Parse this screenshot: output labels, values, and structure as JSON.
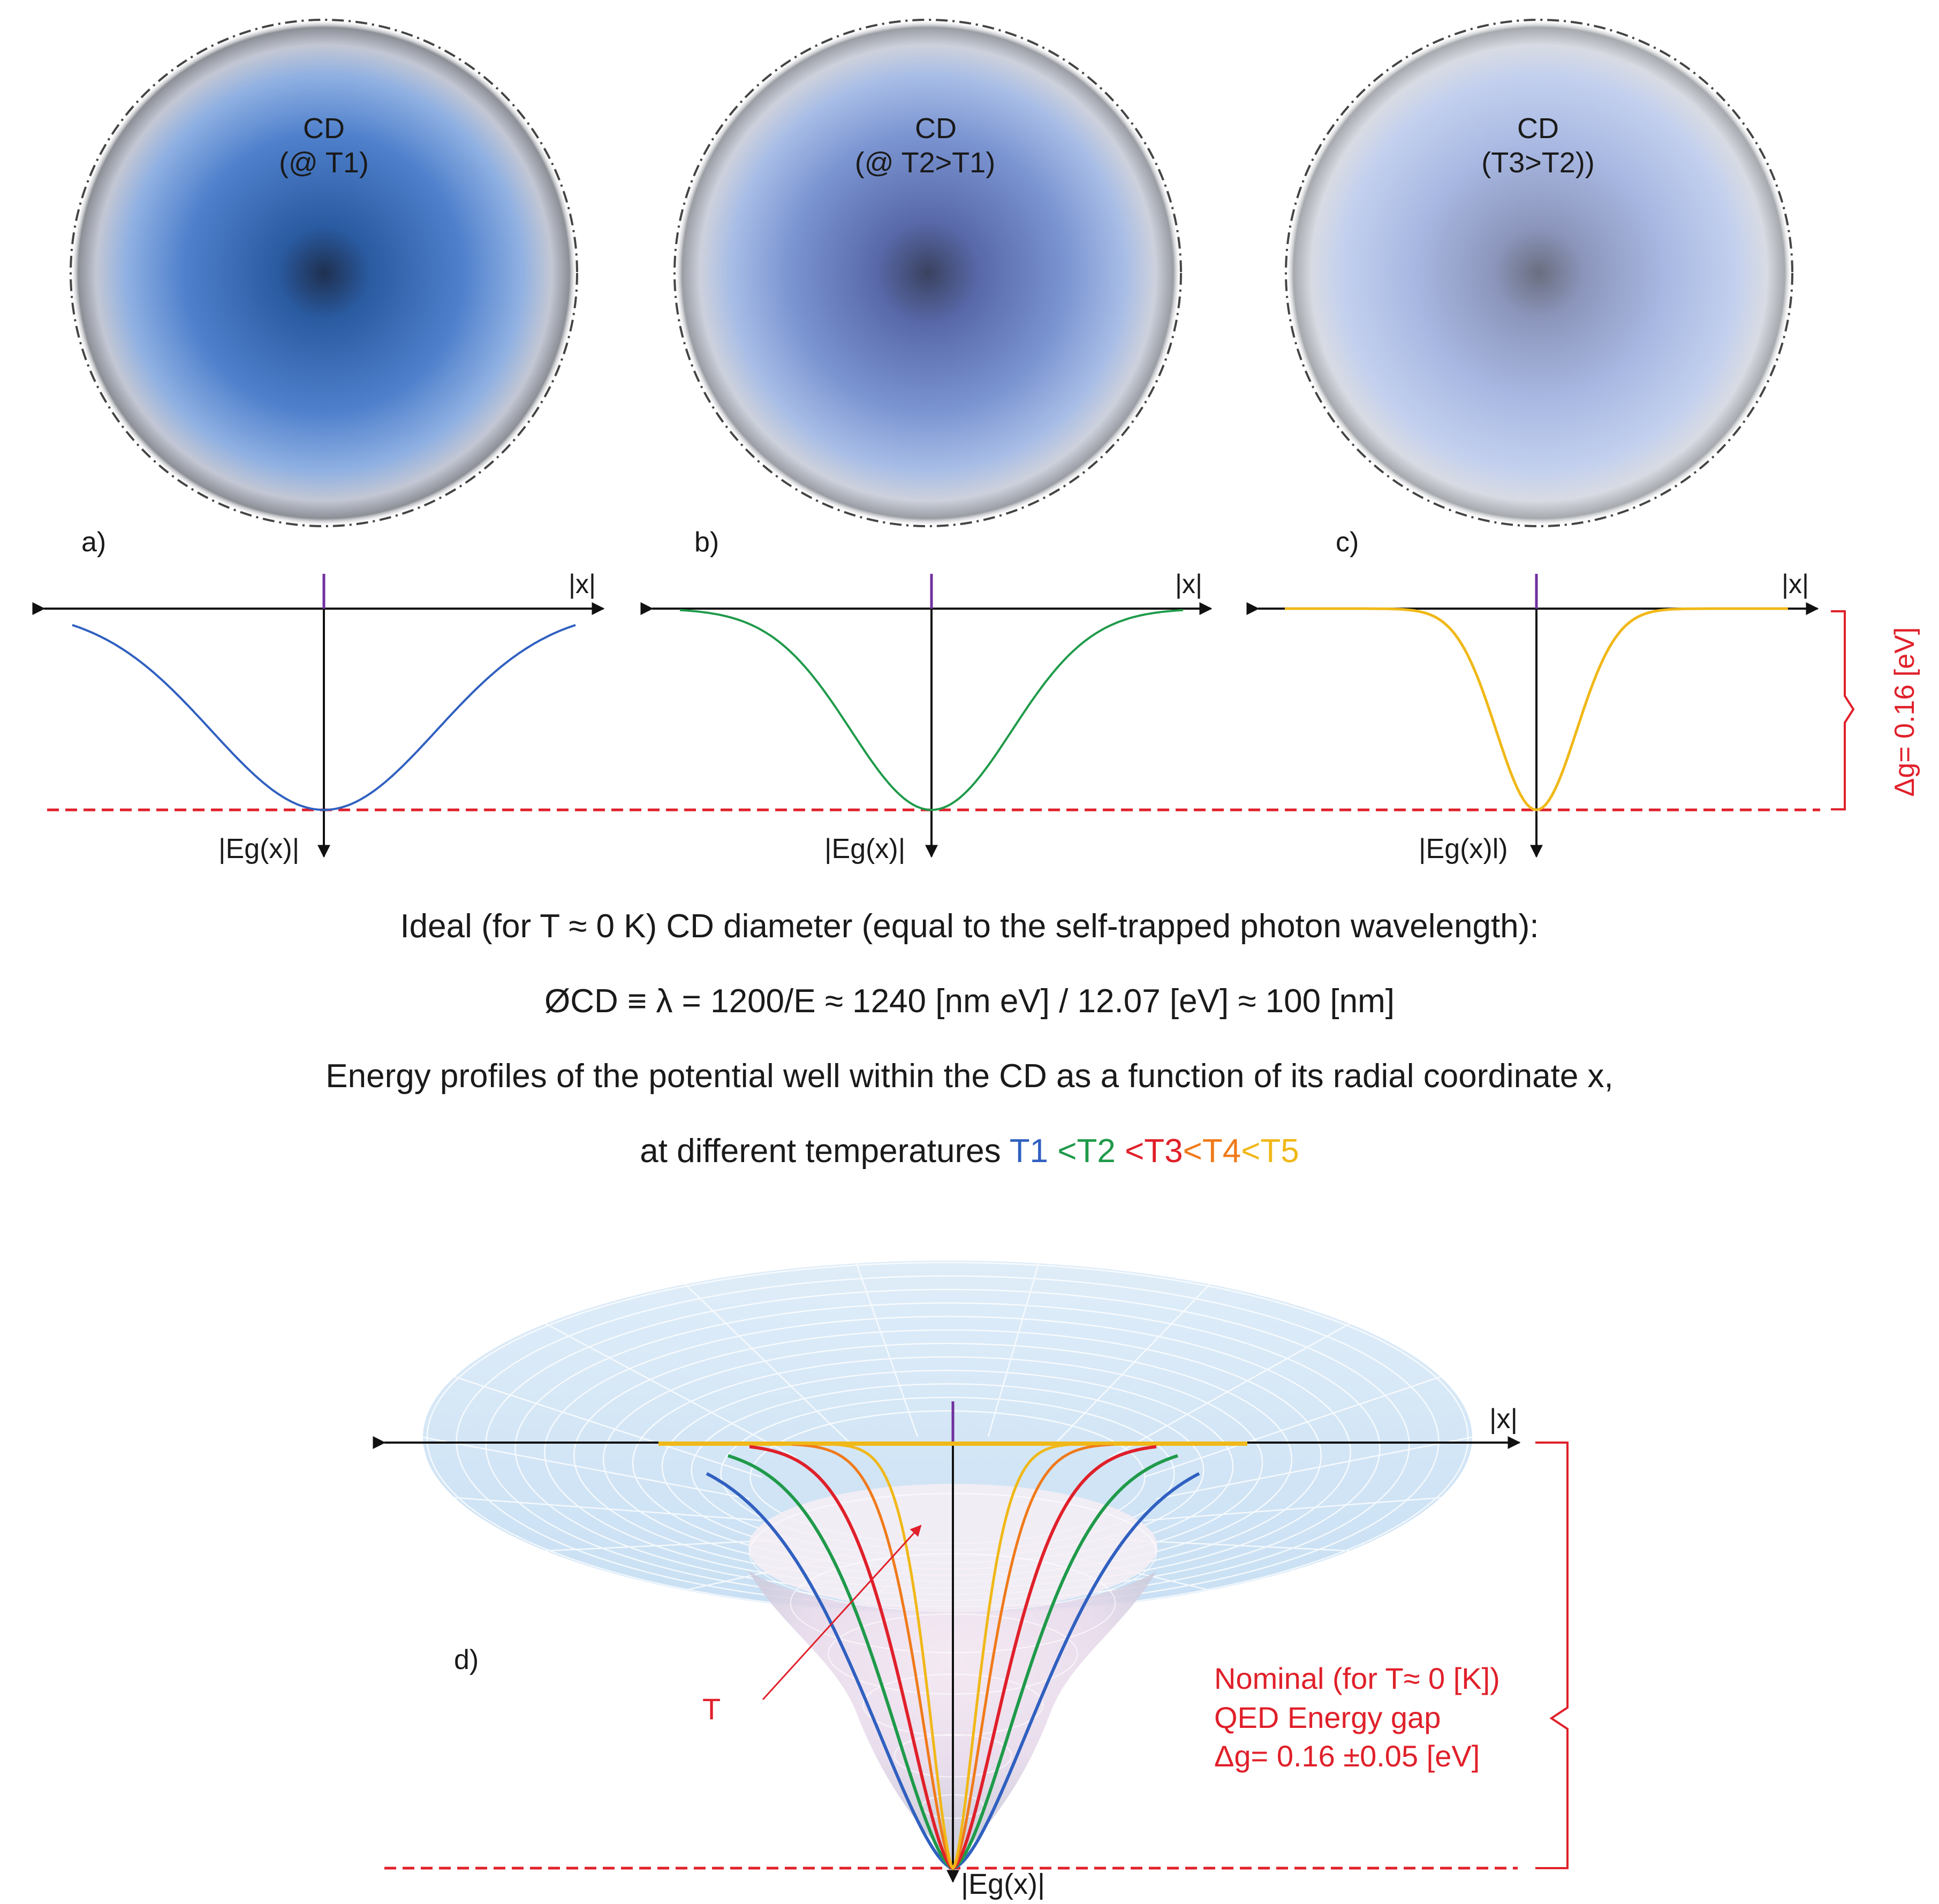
{
  "panels": [
    {
      "id": "a",
      "letter": "a)",
      "cd_title": "CD",
      "cd_sub": "(@ T1)",
      "eg_label": "|Eg(x)|",
      "x_label": "|x|",
      "color": "#3060c0"
    },
    {
      "id": "b",
      "letter": "b)",
      "cd_title": "CD",
      "cd_sub": "(@ T2>T1)",
      "eg_label": "|Eg(x)|",
      "x_label": "|x|",
      "color": "#1f9a4a"
    },
    {
      "id": "c",
      "letter": "c)",
      "cd_title": "CD",
      "cd_sub": "(T3>T2))",
      "eg_label": "|Eg(x)l)",
      "x_label": "|x|",
      "color": "#f0b818"
    }
  ],
  "gap_label_right": "Δg= 0.16 [eV]",
  "captions": {
    "line1": "Ideal (for T ≈ 0 K) CD diameter (equal to the self-trapped photon wavelength):",
    "line2": "ØCD ≡ λ = 1200/E ≈ 1240 [nm eV] / 12.07 [eV] ≈ 100 [nm]",
    "line3": "Energy profiles of the potential well within the CD as a function of its radial coordinate x,",
    "line4_prefix": "at different temperatures ",
    "temps": [
      "T1",
      "<T2",
      "<T3",
      "<T4",
      "<T5"
    ]
  },
  "panel_d": {
    "letter": "d)",
    "x_label": "|x|",
    "eg_label": "|Eg(x)|",
    "t_label": "T",
    "gap_lines": [
      "Nominal (for T≈ 0 [K])",
      "QED Energy gap",
      "Δg= 0.16 ±0.05 [eV]"
    ]
  },
  "colors": {
    "T1": "#3060c0",
    "T2": "#1f9a4a",
    "T3": "#e0202a",
    "T4": "#f07a1a",
    "T5": "#f0b818",
    "gap_line": "#e0202a",
    "axis": "#111111",
    "violet_tick": "#7030a0"
  }
}
